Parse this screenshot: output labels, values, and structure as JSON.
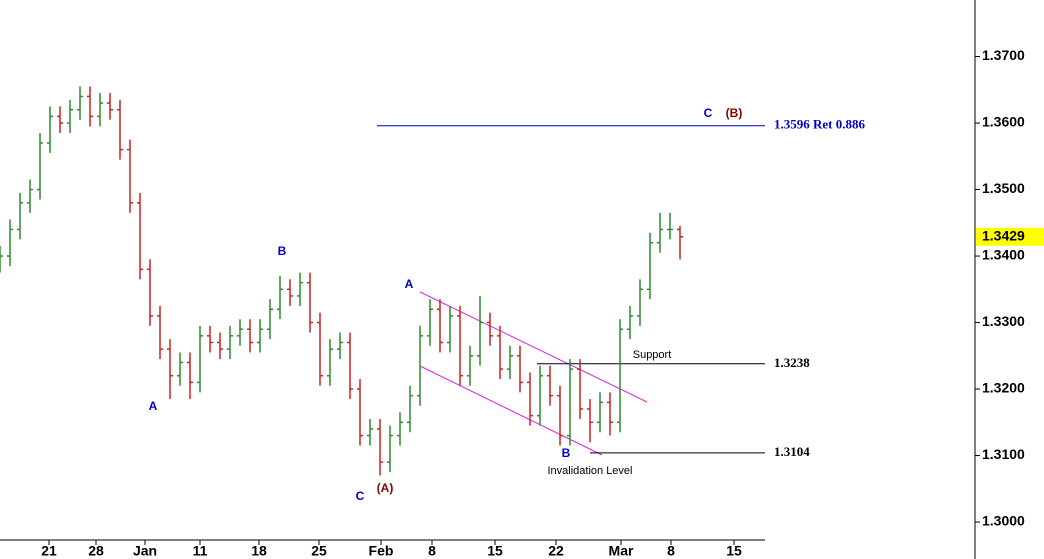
{
  "chart_data": {
    "type": "ohlc",
    "x": [
      0,
      1,
      2,
      3,
      4,
      5,
      6,
      7,
      8,
      9,
      10,
      11,
      12,
      13,
      14,
      15,
      16,
      17,
      18,
      19,
      20,
      21,
      22,
      23,
      24,
      25,
      26,
      27,
      28,
      29,
      30,
      31,
      32,
      33,
      34,
      35,
      36,
      37,
      38,
      39,
      40,
      41,
      42,
      43,
      44,
      45,
      46,
      47,
      48,
      49,
      50,
      51,
      52,
      53,
      54,
      55,
      56,
      57,
      58,
      59,
      60,
      61,
      62,
      63,
      64,
      65,
      66,
      67,
      68
    ],
    "open": [
      1.339,
      1.34,
      1.344,
      1.348,
      1.35,
      1.357,
      1.361,
      1.36,
      1.362,
      1.364,
      1.361,
      1.363,
      1.362,
      1.356,
      1.348,
      1.338,
      1.331,
      1.326,
      1.322,
      1.324,
      1.321,
      1.328,
      1.327,
      1.326,
      1.328,
      1.329,
      1.327,
      1.329,
      1.332,
      1.335,
      1.334,
      1.336,
      1.33,
      1.322,
      1.326,
      1.327,
      1.32,
      1.313,
      1.314,
      1.309,
      1.313,
      1.315,
      1.319,
      1.328,
      1.332,
      1.327,
      1.331,
      1.322,
      1.325,
      1.33,
      1.328,
      1.323,
      1.325,
      1.321,
      1.316,
      1.322,
      1.319,
      1.313,
      1.323,
      1.317,
      1.315,
      1.318,
      1.315,
      1.329,
      1.331,
      1.335,
      1.342,
      1.344,
      1.344
    ],
    "high": [
      1.3415,
      1.3455,
      1.3495,
      1.3515,
      1.3585,
      1.3625,
      1.3625,
      1.3635,
      1.3655,
      1.3655,
      1.3645,
      1.3645,
      1.3635,
      1.3575,
      1.3495,
      1.3395,
      1.3325,
      1.3275,
      1.3255,
      1.3255,
      1.3295,
      1.3295,
      1.3285,
      1.3295,
      1.3305,
      1.3305,
      1.3305,
      1.3335,
      1.337,
      1.3365,
      1.3375,
      1.3375,
      1.3315,
      1.3275,
      1.3285,
      1.3285,
      1.3215,
      1.3155,
      1.3155,
      1.3145,
      1.3165,
      1.3205,
      1.3295,
      1.3335,
      1.3335,
      1.3325,
      1.3325,
      1.3265,
      1.334,
      1.3315,
      1.3295,
      1.3265,
      1.3265,
      1.3225,
      1.3235,
      1.3235,
      1.3205,
      1.3245,
      1.3245,
      1.3185,
      1.3195,
      1.3195,
      1.3305,
      1.3325,
      1.3365,
      1.3435,
      1.3465,
      1.3465,
      1.3445
    ],
    "low": [
      1.3375,
      1.3385,
      1.3425,
      1.3465,
      1.3485,
      1.3555,
      1.3585,
      1.3585,
      1.3605,
      1.3595,
      1.3595,
      1.3605,
      1.3545,
      1.3465,
      1.3365,
      1.3295,
      1.3245,
      1.3185,
      1.3205,
      1.3185,
      1.3195,
      1.3255,
      1.3245,
      1.3245,
      1.3265,
      1.3255,
      1.3255,
      1.3275,
      1.3305,
      1.3325,
      1.3325,
      1.3285,
      1.3205,
      1.3205,
      1.3245,
      1.3185,
      1.3115,
      1.3115,
      1.307,
      1.3075,
      1.3115,
      1.3135,
      1.3175,
      1.3265,
      1.3255,
      1.3255,
      1.3205,
      1.3205,
      1.3235,
      1.3265,
      1.3215,
      1.3215,
      1.3195,
      1.3145,
      1.3145,
      1.3175,
      1.3115,
      1.3115,
      1.3155,
      1.312,
      1.3135,
      1.313,
      1.3135,
      1.3275,
      1.3295,
      1.3335,
      1.3405,
      1.3425,
      1.3395
    ],
    "close": [
      1.34,
      1.344,
      1.348,
      1.35,
      1.357,
      1.361,
      1.36,
      1.362,
      1.364,
      1.361,
      1.363,
      1.362,
      1.356,
      1.348,
      1.338,
      1.331,
      1.326,
      1.322,
      1.324,
      1.321,
      1.328,
      1.327,
      1.326,
      1.328,
      1.329,
      1.327,
      1.329,
      1.332,
      1.335,
      1.334,
      1.336,
      1.33,
      1.322,
      1.326,
      1.327,
      1.32,
      1.313,
      1.314,
      1.309,
      1.313,
      1.315,
      1.319,
      1.328,
      1.332,
      1.327,
      1.331,
      1.322,
      1.325,
      1.33,
      1.328,
      1.323,
      1.325,
      1.321,
      1.316,
      1.322,
      1.319,
      1.313,
      1.323,
      1.317,
      1.315,
      1.318,
      1.315,
      1.329,
      1.331,
      1.335,
      1.342,
      1.344,
      1.344,
      1.3429
    ],
    "up_color": "#2e8b2e",
    "down_color": "#cc2222",
    "xlim": [
      0,
      97.5
    ],
    "xticks": [
      {
        "value": 4.9,
        "label": "21"
      },
      {
        "value": 9.6,
        "label": "28"
      },
      {
        "value": 14.5,
        "label": "Jan"
      },
      {
        "value": 20,
        "label": "11"
      },
      {
        "value": 25.9,
        "label": "18"
      },
      {
        "value": 31.9,
        "label": "25"
      },
      {
        "value": 38.1,
        "label": "Feb"
      },
      {
        "value": 43.2,
        "label": "8"
      },
      {
        "value": 49.5,
        "label": "15"
      },
      {
        "value": 55.6,
        "label": "22"
      },
      {
        "value": 62.1,
        "label": "Mar"
      },
      {
        "value": 67.1,
        "label": "8"
      },
      {
        "value": 73.4,
        "label": "15"
      }
    ],
    "ylim": [
      1.2973,
      1.3785
    ],
    "yticks": [
      {
        "value": 1.3,
        "label": "1.3000"
      },
      {
        "value": 1.31,
        "label": "1.3100"
      },
      {
        "value": 1.32,
        "label": "1.3200"
      },
      {
        "value": 1.33,
        "label": "1.3300"
      },
      {
        "value": 1.34,
        "label": "1.3400"
      },
      {
        "value": 1.35,
        "label": "1.3500"
      },
      {
        "value": 1.36,
        "label": "1.3600"
      },
      {
        "value": 1.37,
        "label": "1.3700"
      }
    ],
    "levels": [
      {
        "value": 1.3596,
        "label": "1.3596 Ret 0.886",
        "color": "#0000cc"
      },
      {
        "value": 1.3238,
        "label": "1.3238",
        "color": "#000000"
      },
      {
        "value": 1.3104,
        "label": "1.3104",
        "color": "#000000"
      }
    ],
    "annotations": [
      "A",
      "B",
      "C",
      "(A)",
      "A",
      "B",
      "C",
      "(B)",
      "Support",
      "Invalidation Level"
    ]
  }
}
